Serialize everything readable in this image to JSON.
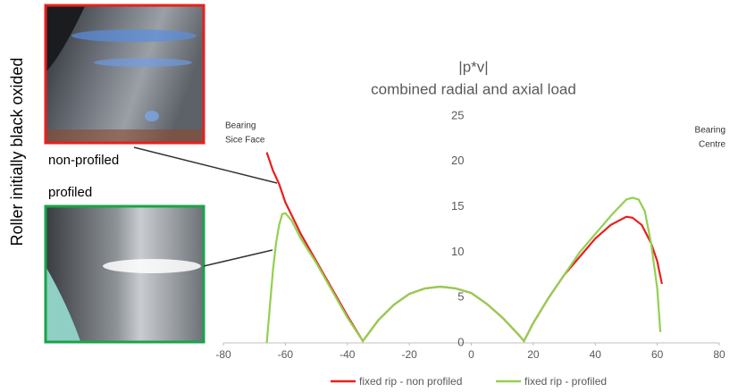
{
  "figure": {
    "side_label": "Roller initially black oxided",
    "photo_labels": [
      "non-profiled",
      "profiled"
    ]
  },
  "chart_data": {
    "type": "line",
    "title": "|p*v|",
    "subtitle": "combined radial and axial load",
    "annotations": [
      [
        "Bearing",
        "Sice Face"
      ],
      [
        "Bearing",
        "Centre"
      ]
    ],
    "xlim": [
      -80,
      80
    ],
    "xticks": [
      -80,
      -60,
      -40,
      -20,
      0,
      20,
      40,
      60,
      80
    ],
    "ylim": [
      0,
      25
    ],
    "yticks": [
      0,
      5,
      10,
      15,
      20,
      25
    ],
    "legend": "bottom",
    "series": [
      {
        "name": "fixed rip - non profiled",
        "color": "#e8201e",
        "x": [
          -66,
          -64,
          -62,
          -60,
          -55,
          -50,
          -45,
          -40,
          -35,
          -30,
          -25,
          -20,
          -15,
          -10,
          -5,
          0,
          5,
          10,
          15,
          17,
          20,
          25,
          30,
          35,
          40,
          45,
          50,
          52,
          55,
          58,
          60,
          61.5
        ],
        "values": [
          21,
          19,
          17.5,
          15.5,
          12,
          9,
          6,
          3,
          0.2,
          2.5,
          4.2,
          5.4,
          6.0,
          6.2,
          6.0,
          5.5,
          4.3,
          2.8,
          1.0,
          0.2,
          2.2,
          5,
          7.5,
          9.5,
          11.5,
          13,
          13.9,
          13.8,
          13,
          11,
          9,
          6.5
        ]
      },
      {
        "name": "fixed rip - profiled",
        "color": "#92d050",
        "x": [
          -66,
          -65,
          -64,
          -63,
          -62,
          -61,
          -60,
          -58,
          -55,
          -50,
          -45,
          -40,
          -35,
          -30,
          -25,
          -20,
          -15,
          -10,
          -5,
          0,
          5,
          10,
          15,
          17,
          20,
          25,
          30,
          35,
          40,
          45,
          50,
          52,
          54,
          56,
          58,
          60,
          61
        ],
        "values": [
          0,
          4,
          8,
          11,
          13,
          14.2,
          14.3,
          13.5,
          11.5,
          8.8,
          5.8,
          2.8,
          0.2,
          2.5,
          4.2,
          5.4,
          6.0,
          6.2,
          6.0,
          5.5,
          4.3,
          2.8,
          1.0,
          0.2,
          2.2,
          5,
          7.5,
          10,
          12,
          14,
          15.8,
          16,
          15.8,
          14.5,
          11,
          6,
          1.2
        ]
      }
    ]
  }
}
